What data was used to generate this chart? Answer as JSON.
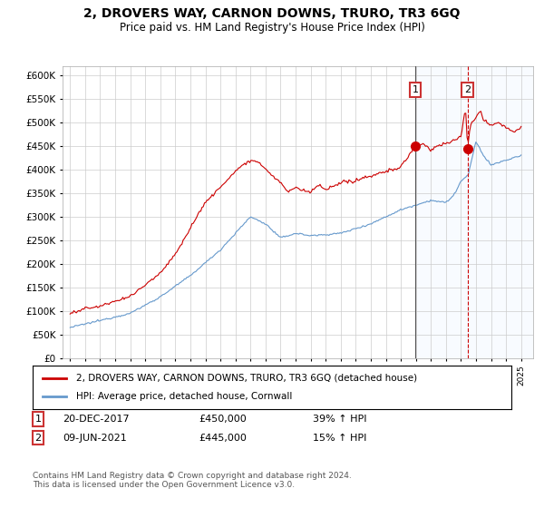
{
  "title": "2, DROVERS WAY, CARNON DOWNS, TRURO, TR3 6GQ",
  "subtitle": "Price paid vs. HM Land Registry's House Price Index (HPI)",
  "legend_line1": "2, DROVERS WAY, CARNON DOWNS, TRURO, TR3 6GQ (detached house)",
  "legend_line2": "HPI: Average price, detached house, Cornwall",
  "transaction1_date": "20-DEC-2017",
  "transaction1_price": "£450,000",
  "transaction1_hpi": "39% ↑ HPI",
  "transaction2_date": "09-JUN-2021",
  "transaction2_price": "£445,000",
  "transaction2_hpi": "15% ↑ HPI",
  "footer": "Contains HM Land Registry data © Crown copyright and database right 2024.\nThis data is licensed under the Open Government Licence v3.0.",
  "ylim": [
    0,
    620000
  ],
  "yticks": [
    0,
    50000,
    100000,
    150000,
    200000,
    250000,
    300000,
    350000,
    400000,
    450000,
    500000,
    550000,
    600000
  ],
  "red_color": "#cc0000",
  "blue_color": "#6699cc",
  "bg_color": "#ffffff",
  "grid_color": "#cccccc",
  "shade_color": "#ddeeff",
  "transaction1_x": 2017.97,
  "transaction1_y": 450000,
  "transaction2_x": 2021.44,
  "transaction2_y": 445000,
  "xmin": 1994.5,
  "xmax": 2025.8
}
